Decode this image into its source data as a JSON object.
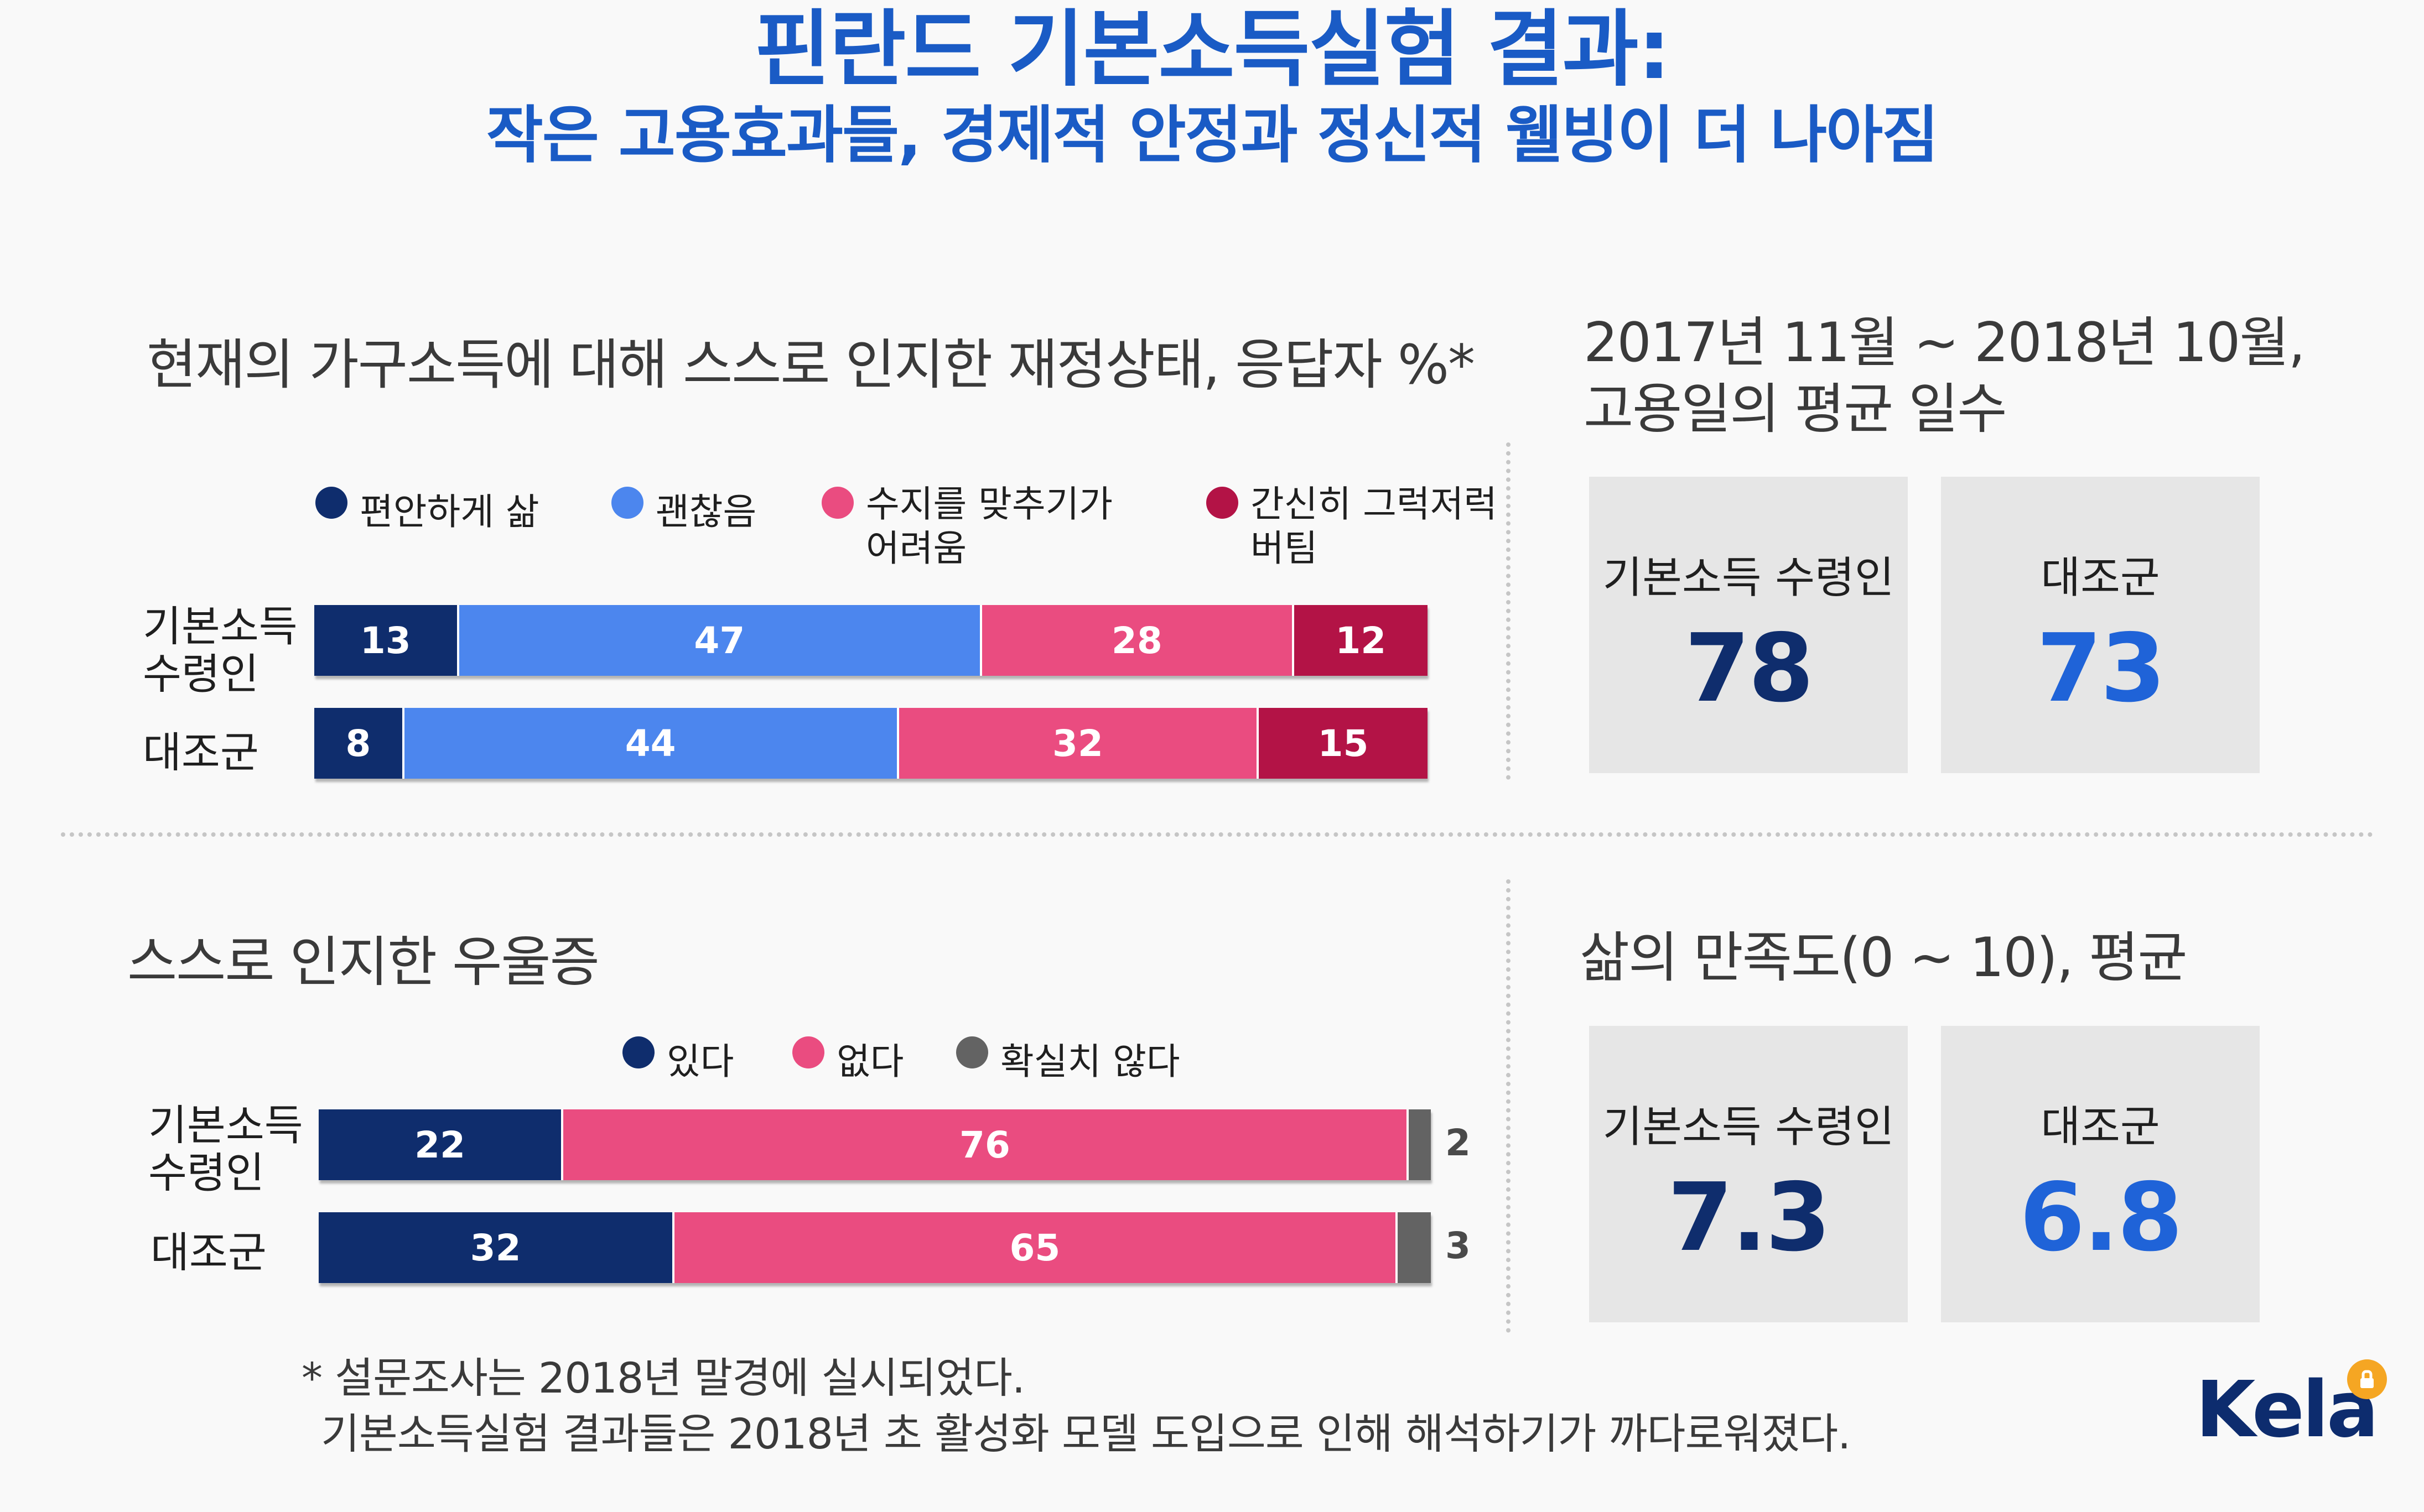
{
  "header": {
    "title": "핀란드 기본소득실험 결과:",
    "subtitle": "작은 고용효과들, 경제적 안정과 정신적 웰빙이 더 나아짐"
  },
  "colors": {
    "title": "#1a5bc5",
    "dark_navy": "#0f2d6d",
    "blue": "#4c86ee",
    "pink": "#ea4c80",
    "crimson": "#b31346",
    "gray": "#636363",
    "stat_blue": "#1f63d8",
    "box_bg": "#e6e6e6"
  },
  "finance": {
    "title": "현재의 가구소득에 대해 스스로 인지한 재정상태, 응답자 %*",
    "legend": [
      "편안하게 삶",
      "괜찮음",
      "수지를 맞추기가 어려움",
      "간신히 그럭저럭 버팀"
    ],
    "legend_lines": [
      [
        "편안하게 삶"
      ],
      [
        "괜찮음"
      ],
      [
        "수지를 맞추기가",
        "어려움"
      ],
      [
        "간신히 그럭저럭",
        "버팀"
      ]
    ],
    "rows": [
      "기본소득 수령인",
      "대조군"
    ],
    "row_lines": [
      [
        "기본소득",
        "수령인"
      ],
      [
        "대조군"
      ]
    ]
  },
  "depression": {
    "title": "스스로 인지한 우울증",
    "legend": [
      "있다",
      "없다",
      "확실치 않다"
    ],
    "rows": [
      "기본소득 수령인",
      "대조군"
    ],
    "row_lines": [
      [
        "기본소득",
        "수령인"
      ],
      [
        "대조군"
      ]
    ]
  },
  "employment": {
    "title_line1": "2017년 11월 ~ 2018년 10월,",
    "title_line2": "고용일의 평균 일수",
    "labels": [
      "기본소득 수령인",
      "대조군"
    ],
    "values": [
      "78",
      "73"
    ]
  },
  "satisfaction": {
    "title": "삶의 만족도(0 ~ 10), 평균",
    "labels": [
      "기본소득 수령인",
      "대조군"
    ],
    "values": [
      "7.3",
      "6.8"
    ]
  },
  "footnote": {
    "line1": "* 설문조사는 2018년 말경에 실시되었다.",
    "line2": "기본소득실험 결과들은 2018년 초 활성화 모델 도입으로 인해 해석하기가 까다로워졌다."
  },
  "logo": {
    "text": "Kela",
    "icon": "kela-badge-icon"
  },
  "chart_data": [
    {
      "type": "bar",
      "orientation": "horizontal-stacked",
      "title": "현재의 가구소득에 대해 스스로 인지한 재정상태, 응답자 %*",
      "categories": [
        "기본소득 수령인",
        "대조군"
      ],
      "series": [
        {
          "name": "편안하게 삶",
          "values": [
            13,
            8
          ]
        },
        {
          "name": "괜찮음",
          "values": [
            47,
            44
          ]
        },
        {
          "name": "수지를 맞추기가 어려움",
          "values": [
            28,
            32
          ]
        },
        {
          "name": "간신히 그럭저럭 버팀",
          "values": [
            12,
            15
          ]
        }
      ],
      "legend": "top",
      "grid": false
    },
    {
      "type": "bar",
      "orientation": "horizontal-stacked",
      "title": "스스로 인지한 우울증",
      "categories": [
        "기본소득 수령인",
        "대조군"
      ],
      "series": [
        {
          "name": "있다",
          "values": [
            22,
            32
          ]
        },
        {
          "name": "없다",
          "values": [
            76,
            65
          ]
        },
        {
          "name": "확실치 않다",
          "values": [
            2,
            3
          ]
        }
      ],
      "legend": "top",
      "grid": false
    },
    {
      "type": "table",
      "title": "2017년 11월 ~ 2018년 10월, 고용일의 평균 일수",
      "categories": [
        "기본소득 수령인",
        "대조군"
      ],
      "values": [
        78,
        73
      ]
    },
    {
      "type": "table",
      "title": "삶의 만족도(0 ~ 10), 평균",
      "categories": [
        "기본소득 수령인",
        "대조군"
      ],
      "values": [
        7.3,
        6.8
      ]
    }
  ]
}
